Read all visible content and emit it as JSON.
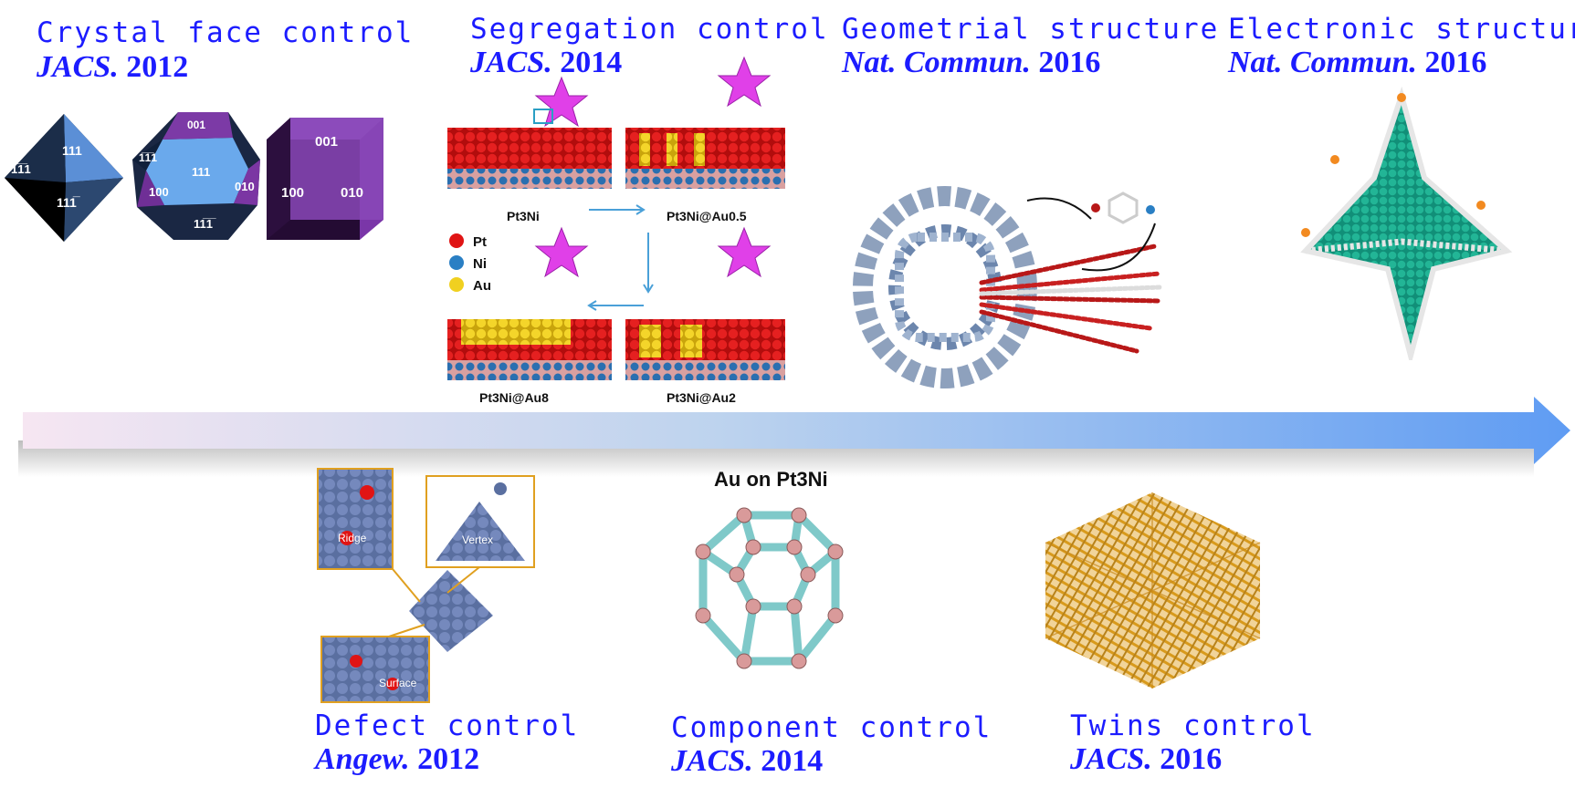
{
  "milestones": {
    "crystal": {
      "title": "Crystal face control",
      "journal": "JACS.",
      "year": "2012",
      "faces": {
        "oct_a": "111",
        "oct_b": "1̅1̅1",
        "oct_c": "111̅",
        "tr_top": "001",
        "tr_a": "1̅1̅1",
        "tr_b": "111",
        "tr_c": "100",
        "tr_d": "010",
        "tr_e": "11̅1̅",
        "cube_top": "001",
        "cube_l": "100",
        "cube_r": "010"
      }
    },
    "segregation": {
      "title": "Segregation control",
      "journal": "JACS.",
      "year": "2014",
      "labels": {
        "p1": "Pt3Ni",
        "p2": "Pt3Ni@Au0.5",
        "p3": "Pt3Ni@Au8",
        "p4": "Pt3Ni@Au2"
      },
      "legend": [
        {
          "name": "Pt",
          "color": "#e01414"
        },
        {
          "name": "Ni",
          "color": "#2a7fc4"
        },
        {
          "name": "Au",
          "color": "#f0d020"
        }
      ]
    },
    "geometrial": {
      "title": "Geometrial structure",
      "journal": "Nat. Commun.",
      "year": "2016"
    },
    "electronic": {
      "title": "Electronic structure",
      "journal": "Nat. Commun.",
      "year": "2016"
    },
    "defect": {
      "title": "Defect control",
      "journal": "Angew.",
      "year": "2012",
      "labels": {
        "ridge": "Ridge",
        "vertex": "Vertex",
        "surface": "Surface"
      }
    },
    "component": {
      "title": "Component control",
      "journal": "JACS.",
      "year": "2014",
      "caption": "Au on Pt3Ni"
    },
    "twins": {
      "title": "Twins control",
      "journal": "JACS.",
      "year": "2016"
    }
  },
  "colors": {
    "text": "#1c1cff",
    "arrow_start": "#f6e6f2",
    "arrow_end": "#5f9cf3",
    "pt": "#e01414",
    "ni": "#2a7fc4",
    "au": "#f0d020",
    "teal": "#1aa88e",
    "gold": "#d89a1c"
  }
}
